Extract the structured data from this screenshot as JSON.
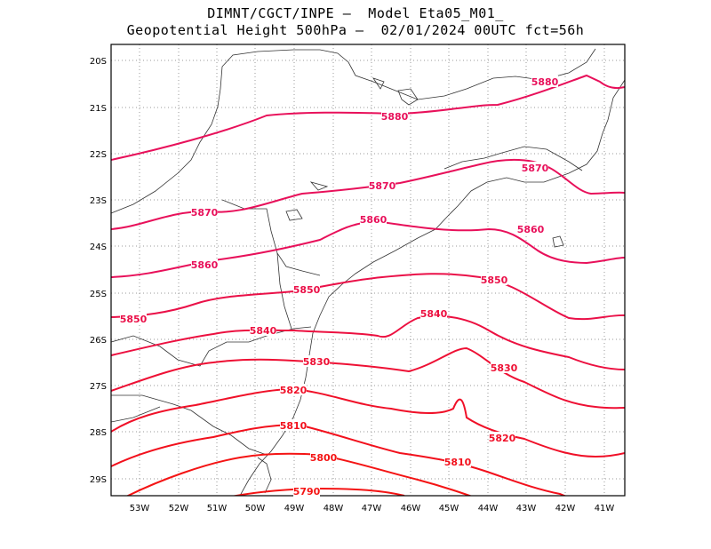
{
  "title": {
    "line1": "DIMNT/CGCT/INPE —  Model Eta05_M01_",
    "line2": "Geopotential Height 500hPa —  02/01/2024 00UTC fct=56h"
  },
  "map_data": {
    "type": "contour_map",
    "lon_range": [
      -53.7,
      -40.5
    ],
    "lat_range": [
      -29.4,
      -19.7
    ],
    "grid": true,
    "x_tick_labels": [
      "53W",
      "52W",
      "51W",
      "50W",
      "49W",
      "48W",
      "47W",
      "46W",
      "45W",
      "44W",
      "43W",
      "42W",
      "41W"
    ],
    "y_tick_labels": [
      "20S",
      "21S",
      "22S",
      "23S",
      "24S",
      "25S",
      "26S",
      "27S",
      "28S",
      "29S"
    ],
    "contour_labels": [
      {
        "text": "5880",
        "color": "#e8105a"
      },
      {
        "text": "5880",
        "color": "#e8105a"
      },
      {
        "text": "5870",
        "color": "#e8105a"
      },
      {
        "text": "5870",
        "color": "#e8105a"
      },
      {
        "text": "5870",
        "color": "#e8105a"
      },
      {
        "text": "5860",
        "color": "#e8105a"
      },
      {
        "text": "5860",
        "color": "#e8105a"
      },
      {
        "text": "5860",
        "color": "#e8105a"
      },
      {
        "text": "5850",
        "color": "#ea1048"
      },
      {
        "text": "5850",
        "color": "#ea1048"
      },
      {
        "text": "5850",
        "color": "#ea1048"
      },
      {
        "text": "5840",
        "color": "#ec1040"
      },
      {
        "text": "5840",
        "color": "#ec1040"
      },
      {
        "text": "5830",
        "color": "#ee1034"
      },
      {
        "text": "5830",
        "color": "#ee1034"
      },
      {
        "text": "5820",
        "color": "#f01028"
      },
      {
        "text": "5820",
        "color": "#f01028"
      },
      {
        "text": "5810",
        "color": "#f2101c"
      },
      {
        "text": "5810",
        "color": "#f2101c"
      },
      {
        "text": "5800",
        "color": "#f41414"
      },
      {
        "text": "5790",
        "color": "#f41414"
      }
    ]
  }
}
